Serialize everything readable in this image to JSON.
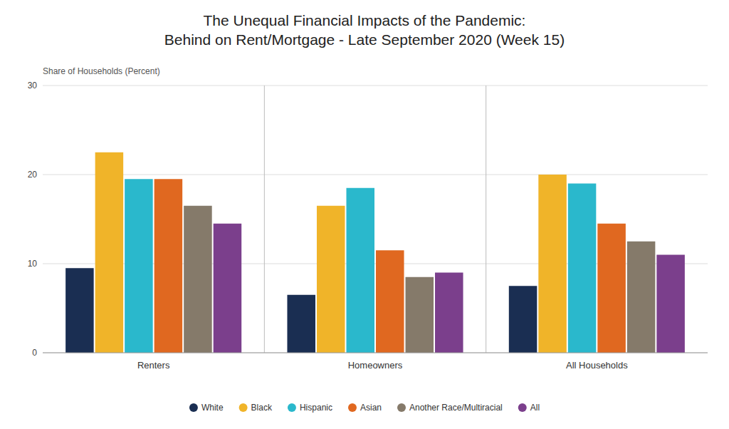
{
  "chart_data": {
    "type": "bar",
    "title": "The Unequal Financial Impacts of the Pandemic:\nBehind on Rent/Mortgage - Late September 2020 (Week 15)",
    "ylabel": "Share of Households (Percent)",
    "categories": [
      "Renters",
      "Homeowners",
      "All Households"
    ],
    "series": [
      {
        "name": "White",
        "color": "#1a2e52",
        "values": [
          9.5,
          6.5,
          7.5
        ]
      },
      {
        "name": "Black",
        "color": "#f0b429",
        "values": [
          22.5,
          16.5,
          20.0
        ]
      },
      {
        "name": "Hispanic",
        "color": "#2ab8cc",
        "values": [
          19.5,
          18.5,
          19.0
        ]
      },
      {
        "name": "Asian",
        "color": "#e06820",
        "values": [
          19.5,
          11.5,
          14.5
        ]
      },
      {
        "name": "Another Race/Multiracial",
        "color": "#857a6a",
        "values": [
          16.5,
          8.5,
          12.5
        ]
      },
      {
        "name": "All",
        "color": "#7b3f8c",
        "values": [
          14.5,
          9.0,
          11.0
        ]
      }
    ],
    "ylim": [
      0,
      30
    ],
    "yticks": [
      0,
      10,
      20,
      30
    ],
    "grid": true,
    "legend": "bottom"
  }
}
